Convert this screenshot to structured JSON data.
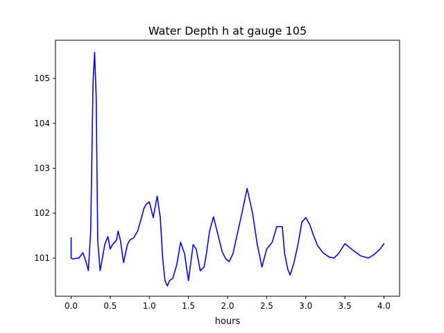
{
  "chart_data": {
    "type": "line",
    "title": "Water Depth h at gauge 105",
    "xlabel": "hours",
    "ylabel": "",
    "xlim": [
      -0.2,
      4.2
    ],
    "ylim": [
      100.15,
      105.85
    ],
    "xticks": [
      0.0,
      0.5,
      1.0,
      1.5,
      2.0,
      2.5,
      3.0,
      3.5,
      4.0
    ],
    "xtick_labels": [
      "0.0",
      "0.5",
      "1.0",
      "1.5",
      "2.0",
      "2.5",
      "3.0",
      "3.5",
      "4.0"
    ],
    "yticks": [
      101,
      102,
      103,
      104,
      105
    ],
    "ytick_labels": [
      "101",
      "102",
      "103",
      "104",
      "105"
    ],
    "grid": false,
    "series": [
      {
        "color": "#0000ff",
        "x": [
          0.0,
          0.0,
          0.02,
          0.1,
          0.15,
          0.19,
          0.22,
          0.25,
          0.28,
          0.3,
          0.32,
          0.34,
          0.37,
          0.4,
          0.43,
          0.47,
          0.5,
          0.53,
          0.58,
          0.6,
          0.63,
          0.67,
          0.72,
          0.75,
          0.8,
          0.85,
          0.9,
          0.93,
          0.96,
          1.0,
          1.05,
          1.1,
          1.14,
          1.17,
          1.2,
          1.23,
          1.26,
          1.3,
          1.35,
          1.4,
          1.45,
          1.5,
          1.56,
          1.6,
          1.65,
          1.7,
          1.73,
          1.77,
          1.82,
          1.88,
          1.93,
          1.97,
          2.02,
          2.07,
          2.12,
          2.19,
          2.25,
          2.32,
          2.38,
          2.44,
          2.5,
          2.57,
          2.63,
          2.7,
          2.73,
          2.77,
          2.8,
          2.85,
          2.9,
          2.95,
          3.0,
          3.05,
          3.1,
          3.15,
          3.22,
          3.3,
          3.36,
          3.42,
          3.5,
          3.6,
          3.7,
          3.8,
          3.85,
          3.9,
          3.95,
          4.0
        ],
        "y": [
          101.45,
          101.0,
          100.98,
          101.0,
          101.12,
          100.92,
          100.72,
          101.6,
          104.9,
          105.58,
          104.6,
          101.4,
          100.72,
          101.0,
          101.3,
          101.48,
          101.2,
          101.3,
          101.4,
          101.6,
          101.4,
          100.9,
          101.3,
          101.4,
          101.45,
          101.6,
          101.9,
          102.1,
          102.2,
          102.25,
          101.9,
          102.38,
          101.9,
          101.0,
          100.5,
          100.38,
          100.5,
          100.55,
          100.85,
          101.35,
          101.1,
          100.5,
          101.3,
          101.2,
          100.72,
          100.8,
          101.1,
          101.6,
          101.92,
          101.5,
          101.15,
          101.0,
          100.92,
          101.1,
          101.5,
          102.05,
          102.55,
          102.0,
          101.3,
          100.8,
          101.2,
          101.35,
          101.7,
          101.7,
          101.1,
          100.75,
          100.62,
          100.9,
          101.3,
          101.8,
          101.9,
          101.75,
          101.5,
          101.28,
          101.12,
          101.02,
          101.0,
          101.1,
          101.32,
          101.18,
          101.05,
          101.0,
          101.05,
          101.12,
          101.2,
          101.32
        ]
      }
    ]
  }
}
